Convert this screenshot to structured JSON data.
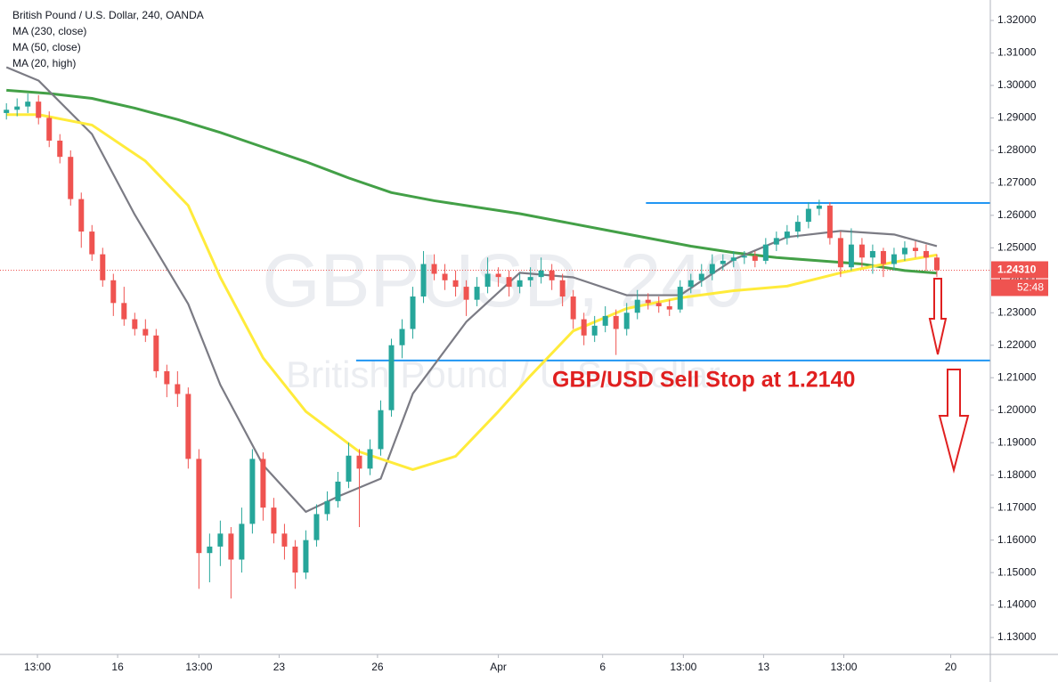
{
  "chart_data": {
    "type": "candlestick",
    "title": "British Pound / U.S. Dollar, 240, OANDA",
    "watermark": "GBPUSD, 240",
    "watermark_subtitle": "British Pound / U.S. Dollar",
    "annotation": "GBP/USD Sell Stop at 1.2140",
    "up_color": "#26a69a",
    "down_color": "#ef5350",
    "grid": false,
    "ylim": [
      1.1248,
      1.3263
    ],
    "xlim": [
      -0.6,
      92
    ],
    "yticks": [
      {
        "value": 1.32,
        "label": "1.32000"
      },
      {
        "value": 1.31,
        "label": "1.31000"
      },
      {
        "value": 1.3,
        "label": "1.30000"
      },
      {
        "value": 1.29,
        "label": "1.29000"
      },
      {
        "value": 1.28,
        "label": "1.28000"
      },
      {
        "value": 1.27,
        "label": "1.27000"
      },
      {
        "value": 1.26,
        "label": "1.26000"
      },
      {
        "value": 1.25,
        "label": "1.25000"
      },
      {
        "value": 1.24,
        "label": "1.24000"
      },
      {
        "value": 1.23,
        "label": "1.23000"
      },
      {
        "value": 1.22,
        "label": "1.22000"
      },
      {
        "value": 1.21,
        "label": "1.21000"
      },
      {
        "value": 1.2,
        "label": "1.20000"
      },
      {
        "value": 1.19,
        "label": "1.19000"
      },
      {
        "value": 1.18,
        "label": "1.18000"
      },
      {
        "value": 1.17,
        "label": "1.17000"
      },
      {
        "value": 1.16,
        "label": "1.16000"
      },
      {
        "value": 1.15,
        "label": "1.15000"
      },
      {
        "value": 1.14,
        "label": "1.14000"
      },
      {
        "value": 1.13,
        "label": "1.13000"
      }
    ],
    "xticks": [
      {
        "value": 2.9,
        "label": "13:00"
      },
      {
        "value": 10.4,
        "label": "16"
      },
      {
        "value": 18,
        "label": "13:00"
      },
      {
        "value": 25.5,
        "label": "23"
      },
      {
        "value": 34.7,
        "label": "26"
      },
      {
        "value": 46,
        "label": "Apr"
      },
      {
        "value": 55.75,
        "label": "6"
      },
      {
        "value": 63.3,
        "label": "13:00"
      },
      {
        "value": 70.8,
        "label": "13"
      },
      {
        "value": 78.3,
        "label": "13:00"
      },
      {
        "value": 88.3,
        "label": "20"
      }
    ],
    "last_price": {
      "value": 1.2431,
      "label": "1.24310",
      "countdown": "52:48",
      "color": "#ef5350"
    },
    "levels": [
      {
        "value": 1.2638,
        "color": "#2196f3",
        "x_start": 59.8
      },
      {
        "value": 1.2153,
        "color": "#2196f3",
        "x_start": 32.7
      }
    ],
    "ohlc": [
      [
        1.2915,
        1.2945,
        1.2895,
        1.2925
      ],
      [
        1.2925,
        1.296,
        1.2905,
        1.2935
      ],
      [
        1.2935,
        1.2975,
        1.2915,
        1.295
      ],
      [
        1.295,
        1.297,
        1.288,
        1.29
      ],
      [
        1.29,
        1.292,
        1.281,
        1.283
      ],
      [
        1.283,
        1.285,
        1.276,
        1.278
      ],
      [
        1.278,
        1.28,
        1.263,
        1.265
      ],
      [
        1.265,
        1.267,
        1.25,
        1.255
      ],
      [
        1.255,
        1.257,
        1.246,
        1.248
      ],
      [
        1.248,
        1.25,
        1.238,
        1.24
      ],
      [
        1.24,
        1.242,
        1.229,
        1.233
      ],
      [
        1.233,
        1.238,
        1.226,
        1.228
      ],
      [
        1.228,
        1.23,
        1.223,
        1.225
      ],
      [
        1.225,
        1.228,
        1.221,
        1.223
      ],
      [
        1.223,
        1.225,
        1.21,
        1.212
      ],
      [
        1.212,
        1.214,
        1.204,
        1.208
      ],
      [
        1.208,
        1.212,
        1.201,
        1.205
      ],
      [
        1.205,
        1.207,
        1.182,
        1.185
      ],
      [
        1.185,
        1.188,
        1.145,
        1.156
      ],
      [
        1.156,
        1.162,
        1.147,
        1.158
      ],
      [
        1.158,
        1.166,
        1.152,
        1.162
      ],
      [
        1.162,
        1.164,
        1.142,
        1.154
      ],
      [
        1.154,
        1.17,
        1.15,
        1.165
      ],
      [
        1.165,
        1.188,
        1.162,
        1.185
      ],
      [
        1.185,
        1.187,
        1.166,
        1.17
      ],
      [
        1.17,
        1.173,
        1.159,
        1.162
      ],
      [
        1.162,
        1.165,
        1.154,
        1.158
      ],
      [
        1.158,
        1.16,
        1.145,
        1.15
      ],
      [
        1.15,
        1.163,
        1.148,
        1.16
      ],
      [
        1.16,
        1.171,
        1.158,
        1.168
      ],
      [
        1.168,
        1.175,
        1.166,
        1.172
      ],
      [
        1.172,
        1.181,
        1.17,
        1.178
      ],
      [
        1.178,
        1.19,
        1.176,
        1.186
      ],
      [
        1.186,
        1.188,
        1.164,
        1.182
      ],
      [
        1.182,
        1.191,
        1.18,
        1.188
      ],
      [
        1.188,
        1.203,
        1.186,
        1.2
      ],
      [
        1.2,
        1.222,
        1.198,
        1.22
      ],
      [
        1.22,
        1.228,
        1.216,
        1.225
      ],
      [
        1.225,
        1.238,
        1.222,
        1.235
      ],
      [
        1.235,
        1.249,
        1.233,
        1.245
      ],
      [
        1.245,
        1.248,
        1.24,
        1.242
      ],
      [
        1.242,
        1.245,
        1.237,
        1.24
      ],
      [
        1.24,
        1.243,
        1.235,
        1.238
      ],
      [
        1.238,
        1.24,
        1.229,
        1.234
      ],
      [
        1.234,
        1.241,
        1.232,
        1.238
      ],
      [
        1.238,
        1.247,
        1.236,
        1.242
      ],
      [
        1.242,
        1.244,
        1.238,
        1.241
      ],
      [
        1.241,
        1.243,
        1.235,
        1.238
      ],
      [
        1.238,
        1.242,
        1.236,
        1.24
      ],
      [
        1.24,
        1.244,
        1.238,
        1.241
      ],
      [
        1.241,
        1.247,
        1.239,
        1.243
      ],
      [
        1.243,
        1.245,
        1.237,
        1.24
      ],
      [
        1.24,
        1.242,
        1.232,
        1.235
      ],
      [
        1.235,
        1.237,
        1.225,
        1.228
      ],
      [
        1.228,
        1.23,
        1.22,
        1.223
      ],
      [
        1.223,
        1.229,
        1.221,
        1.226
      ],
      [
        1.226,
        1.232,
        1.224,
        1.229
      ],
      [
        1.229,
        1.231,
        1.217,
        1.225
      ],
      [
        1.225,
        1.233,
        1.223,
        1.23
      ],
      [
        1.23,
        1.237,
        1.228,
        1.234
      ],
      [
        1.234,
        1.236,
        1.231,
        1.233
      ],
      [
        1.233,
        1.235,
        1.23,
        1.232
      ],
      [
        1.232,
        1.234,
        1.229,
        1.231
      ],
      [
        1.231,
        1.24,
        1.23,
        1.238
      ],
      [
        1.238,
        1.242,
        1.236,
        1.24
      ],
      [
        1.24,
        1.245,
        1.238,
        1.242
      ],
      [
        1.242,
        1.248,
        1.24,
        1.245
      ],
      [
        1.245,
        1.248,
        1.243,
        1.246
      ],
      [
        1.246,
        1.249,
        1.244,
        1.247
      ],
      [
        1.247,
        1.249,
        1.245,
        1.2475
      ],
      [
        1.2475,
        1.249,
        1.244,
        1.246
      ],
      [
        1.246,
        1.253,
        1.245,
        1.251
      ],
      [
        1.251,
        1.255,
        1.249,
        1.253
      ],
      [
        1.253,
        1.257,
        1.251,
        1.255
      ],
      [
        1.255,
        1.26,
        1.253,
        1.258
      ],
      [
        1.258,
        1.264,
        1.256,
        1.262
      ],
      [
        1.262,
        1.2648,
        1.26,
        1.263
      ],
      [
        1.263,
        1.264,
        1.251,
        1.253
      ],
      [
        1.253,
        1.255,
        1.241,
        1.244
      ],
      [
        1.244,
        1.256,
        1.243,
        1.251
      ],
      [
        1.251,
        1.253,
        1.244,
        1.247
      ],
      [
        1.247,
        1.251,
        1.242,
        1.249
      ],
      [
        1.249,
        1.25,
        1.241,
        1.245
      ],
      [
        1.245,
        1.25,
        1.243,
        1.248
      ],
      [
        1.248,
        1.252,
        1.246,
        1.25
      ],
      [
        1.25,
        1.252,
        1.247,
        1.249
      ],
      [
        1.249,
        1.251,
        1.243,
        1.247
      ],
      [
        1.247,
        1.248,
        1.241,
        1.2431
      ]
    ],
    "series": [
      {
        "name": "MA (230, close)",
        "color": "#43a047",
        "x": [
          0,
          4,
          8,
          12,
          16,
          20,
          24,
          28,
          32,
          36,
          40,
          44,
          48,
          52,
          56,
          60,
          64,
          68,
          72,
          76,
          80,
          84,
          87
        ],
        "values": [
          1.2985,
          1.2975,
          1.296,
          1.293,
          1.2895,
          1.2855,
          1.281,
          1.2765,
          1.2715,
          1.267,
          1.2645,
          1.2625,
          1.2605,
          1.258,
          1.2555,
          1.253,
          1.2505,
          1.2485,
          1.247,
          1.246,
          1.245,
          1.243,
          1.2422
        ]
      },
      {
        "name": "MA (50, close)",
        "color": "#7b7b84",
        "x": [
          0,
          3,
          8,
          12,
          17,
          20,
          24,
          28,
          31,
          35,
          38,
          43,
          48,
          53,
          58,
          63,
          68,
          73,
          78,
          83,
          87
        ],
        "values": [
          1.3056,
          1.3015,
          1.285,
          1.2602,
          1.2327,
          1.2078,
          1.1831,
          1.1687,
          1.1734,
          1.1789,
          1.2051,
          1.2272,
          1.2423,
          1.2409,
          1.2354,
          1.2354,
          1.2464,
          1.2533,
          1.2552,
          1.2541,
          1.2505
        ]
      },
      {
        "name": "MA (20, high)",
        "color": "#ffeb3b",
        "x": [
          0,
          3,
          8,
          13,
          17,
          20,
          24,
          28,
          33,
          38,
          42,
          46,
          49,
          53,
          58,
          63,
          68,
          73,
          78,
          83,
          87
        ],
        "values": [
          1.291,
          1.291,
          1.2878,
          1.2767,
          1.263,
          1.2409,
          1.2161,
          1.1996,
          1.1872,
          1.1817,
          1.1858,
          1.1996,
          1.2106,
          1.2244,
          1.2313,
          1.2346,
          1.2368,
          1.2382,
          1.2423,
          1.2456,
          1.2478
        ]
      }
    ]
  }
}
